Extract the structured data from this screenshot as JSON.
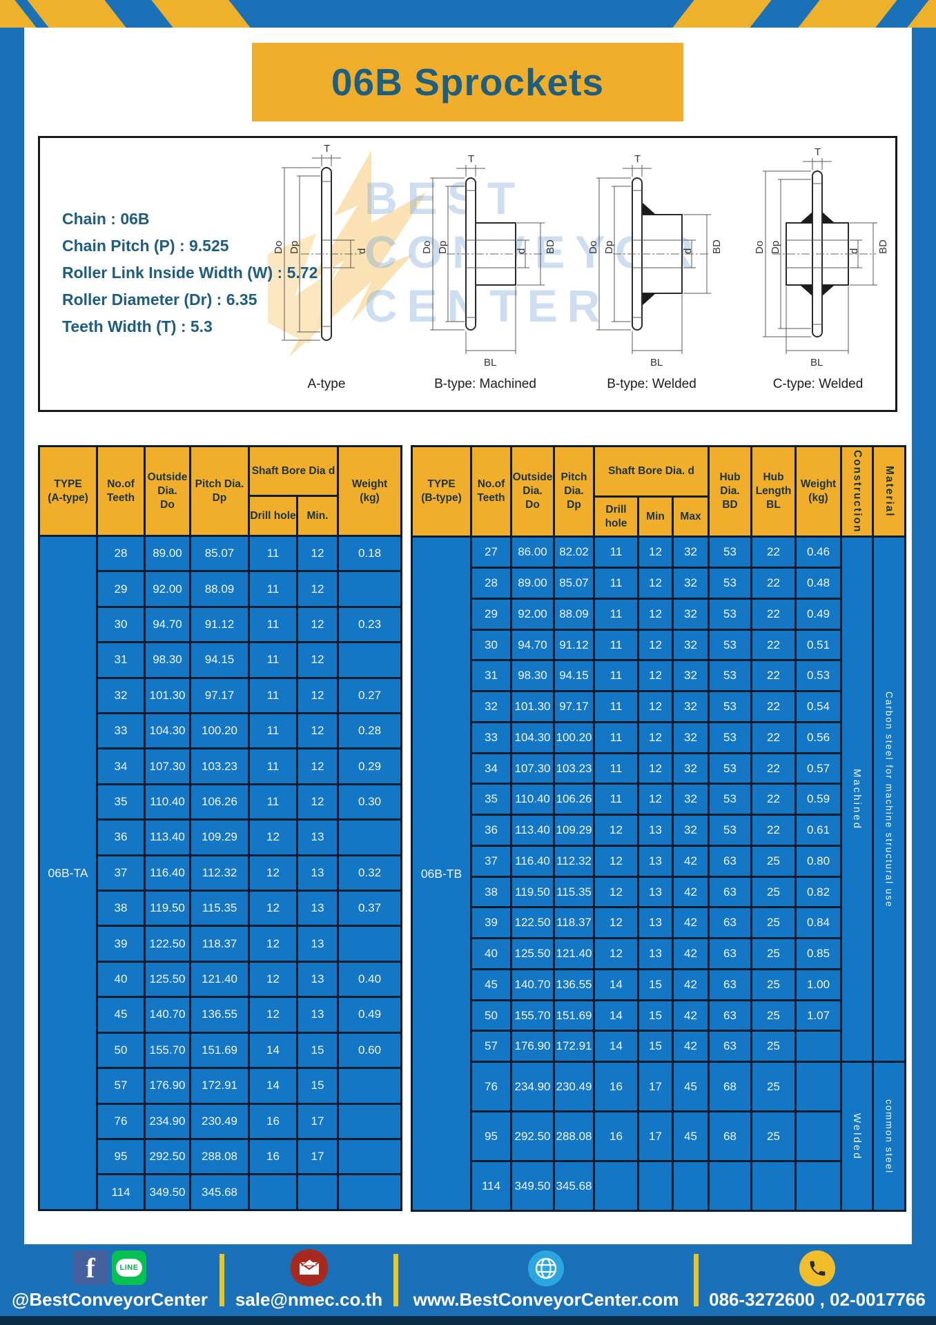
{
  "title": "06B Sprockets",
  "specs": [
    "Chain  : 06B",
    "Chain Pitch (P)  :  9.525",
    "Roller Link Inside Width (W)  :  5.72",
    "Roller Diameter (Dr)  : 6.35",
    "Teeth Width (T)  :  5.3"
  ],
  "watermark": {
    "lines": [
      "BEST",
      "CONVEYOR",
      "CENTER"
    ]
  },
  "dims": {
    "t": "T",
    "do": "Do",
    "dp": "Dp",
    "d": "d",
    "bd": "BD",
    "bl": "BL"
  },
  "captions": [
    "A-type",
    "B-type: Machined",
    "B-type: Welded",
    "C-type: Welded"
  ],
  "colors": {
    "page_blue": "#1a71b8",
    "hazard_yellow": "#eeb12c",
    "header_yellow": "#f0ae2a",
    "cell_blue": "#1377c5",
    "title_text": "#1e5f80",
    "footer_strip": "#0b2b47"
  },
  "table_a": {
    "header": {
      "type": "TYPE\n(A-type)",
      "teeth": "No.of\nTeeth",
      "outside": "Outside\nDia.\nDo",
      "pitch": "Pitch Dia.\nDp",
      "shaft_bore": "Shaft Bore Dia d",
      "drill": "Drill hole",
      "min": "Min.",
      "weight": "Weight\n(kg)"
    },
    "type_value": "06B-TA",
    "rows": [
      [
        "28",
        "89.00",
        "85.07",
        "11",
        "12",
        "0.18"
      ],
      [
        "29",
        "92.00",
        "88.09",
        "11",
        "12",
        ""
      ],
      [
        "30",
        "94.70",
        "91.12",
        "11",
        "12",
        "0.23"
      ],
      [
        "31",
        "98.30",
        "94.15",
        "11",
        "12",
        ""
      ],
      [
        "32",
        "101.30",
        "97.17",
        "11",
        "12",
        "0.27"
      ],
      [
        "33",
        "104.30",
        "100.20",
        "11",
        "12",
        "0.28"
      ],
      [
        "34",
        "107.30",
        "103.23",
        "11",
        "12",
        "0.29"
      ],
      [
        "35",
        "110.40",
        "106.26",
        "11",
        "12",
        "0.30"
      ],
      [
        "36",
        "113.40",
        "109.29",
        "12",
        "13",
        ""
      ],
      [
        "37",
        "116.40",
        "112.32",
        "12",
        "13",
        "0.32"
      ],
      [
        "38",
        "119.50",
        "115.35",
        "12",
        "13",
        "0.37"
      ],
      [
        "39",
        "122.50",
        "118.37",
        "12",
        "13",
        ""
      ],
      [
        "40",
        "125.50",
        "121.40",
        "12",
        "13",
        "0.40"
      ],
      [
        "45",
        "140.70",
        "136.55",
        "12",
        "13",
        "0.49"
      ],
      [
        "50",
        "155.70",
        "151.69",
        "14",
        "15",
        "0.60"
      ],
      [
        "57",
        "176.90",
        "172.91",
        "14",
        "15",
        ""
      ],
      [
        "76",
        "234.90",
        "230.49",
        "16",
        "17",
        ""
      ],
      [
        "95",
        "292.50",
        "288.08",
        "16",
        "17",
        ""
      ],
      [
        "114",
        "349.50",
        "345.68",
        "",
        "",
        ""
      ]
    ]
  },
  "table_b": {
    "header": {
      "type": "TYPE\n(B-type)",
      "teeth": "No.of\nTeeth",
      "outside": "Outside\nDia.\nDo",
      "pitch": "Pitch\nDia.\nDp",
      "shaft_bore": "Shaft Bore Dia. d",
      "drill": "Drill hole",
      "min": "Min",
      "max": "Max",
      "hub_dia": "Hub\nDia.\nBD",
      "hub_len": "Hub\nLength\nBL",
      "weight": "Weight\n(kg)",
      "construction": "Construction",
      "material": "Material"
    },
    "type_value": "06B-TB",
    "rows": [
      [
        "27",
        "86.00",
        "82.02",
        "11",
        "12",
        "32",
        "53",
        "22",
        "0.46"
      ],
      [
        "28",
        "89.00",
        "85.07",
        "11",
        "12",
        "32",
        "53",
        "22",
        "0.48"
      ],
      [
        "29",
        "92.00",
        "88.09",
        "11",
        "12",
        "32",
        "53",
        "22",
        "0.49"
      ],
      [
        "30",
        "94.70",
        "91.12",
        "11",
        "12",
        "32",
        "53",
        "22",
        "0.51"
      ],
      [
        "31",
        "98.30",
        "94.15",
        "11",
        "12",
        "32",
        "53",
        "22",
        "0.53"
      ],
      [
        "32",
        "101.30",
        "97.17",
        "11",
        "12",
        "32",
        "53",
        "22",
        "0.54"
      ],
      [
        "33",
        "104.30",
        "100.20",
        "11",
        "12",
        "32",
        "53",
        "22",
        "0.56"
      ],
      [
        "34",
        "107.30",
        "103.23",
        "11",
        "12",
        "32",
        "53",
        "22",
        "0.57"
      ],
      [
        "35",
        "110.40",
        "106.26",
        "11",
        "12",
        "32",
        "53",
        "22",
        "0.59"
      ],
      [
        "36",
        "113.40",
        "109.29",
        "12",
        "13",
        "32",
        "53",
        "22",
        "0.61"
      ],
      [
        "37",
        "116.40",
        "112.32",
        "12",
        "13",
        "42",
        "63",
        "25",
        "0.80"
      ],
      [
        "38",
        "119.50",
        "115.35",
        "12",
        "13",
        "42",
        "63",
        "25",
        "0.82"
      ],
      [
        "39",
        "122.50",
        "118.37",
        "12",
        "13",
        "42",
        "63",
        "25",
        "0.84"
      ],
      [
        "40",
        "125.50",
        "121.40",
        "12",
        "13",
        "42",
        "63",
        "25",
        "0.85"
      ],
      [
        "45",
        "140.70",
        "136.55",
        "14",
        "15",
        "42",
        "63",
        "25",
        "1.00"
      ],
      [
        "50",
        "155.70",
        "151.69",
        "14",
        "15",
        "42",
        "63",
        "25",
        "1.07"
      ],
      [
        "57",
        "176.90",
        "172.91",
        "14",
        "15",
        "42",
        "63",
        "25",
        ""
      ],
      [
        "76",
        "234.90",
        "230.49",
        "16",
        "17",
        "45",
        "68",
        "25",
        ""
      ],
      [
        "95",
        "292.50",
        "288.08",
        "16",
        "17",
        "45",
        "68",
        "25",
        ""
      ],
      [
        "114",
        "349.50",
        "345.68",
        "",
        "",
        "",
        "",
        "",
        ""
      ]
    ],
    "construction_groups": [
      {
        "label": "Machined",
        "span": 17
      },
      {
        "label": "Welded",
        "span": 3
      }
    ],
    "material_groups": [
      {
        "label": "Carbon steel for machine structural use",
        "span": 17
      },
      {
        "label": "common steel",
        "span": 3
      }
    ]
  },
  "footer": {
    "icons": {
      "facebook_glyph": "f",
      "line_label": "LINE"
    },
    "sections": [
      {
        "text": "@BestConveyorCenter"
      },
      {
        "text": "sale@nmec.co.th"
      },
      {
        "text": "www.BestConveyorCenter.com"
      },
      {
        "text": "086-3272600 , 02-0017766"
      }
    ]
  }
}
